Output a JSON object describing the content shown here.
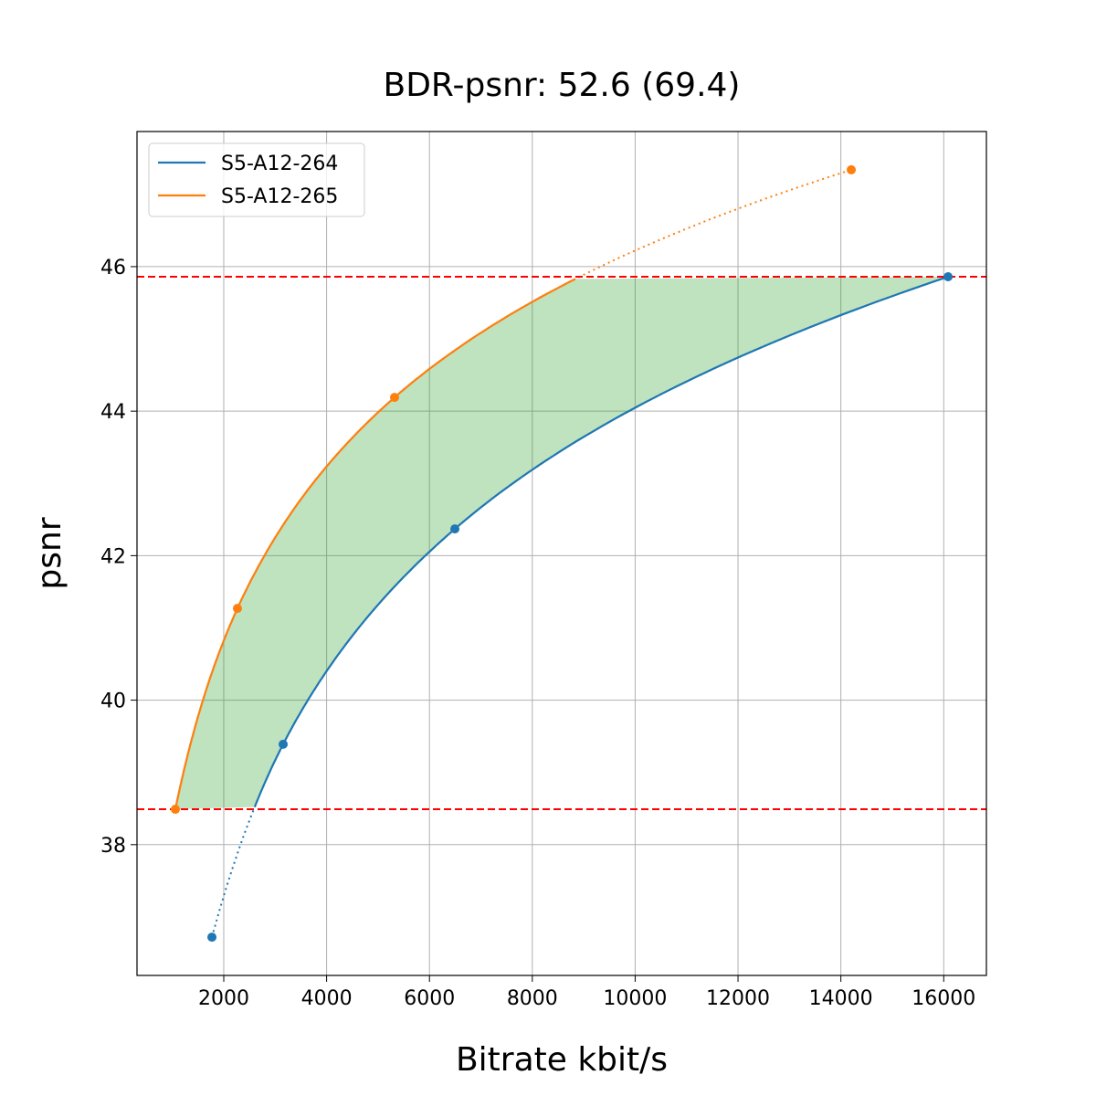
{
  "chart_data": {
    "type": "line",
    "title": "BDR-psnr: 52.6 (69.4)",
    "xlabel": "Bitrate kbit/s",
    "ylabel": "psnr",
    "xlim": [
      313,
      16830
    ],
    "ylim": [
      36.19,
      47.87
    ],
    "xticks": [
      2000,
      4000,
      6000,
      8000,
      10000,
      12000,
      14000,
      16000
    ],
    "xtick_labels": [
      "2000",
      "4000",
      "6000",
      "8000",
      "10000",
      "12000",
      "14000",
      "16000"
    ],
    "yticks": [
      38,
      40,
      42,
      44,
      46
    ],
    "ytick_labels": [
      "38",
      "40",
      "42",
      "44",
      "46"
    ],
    "grid": true,
    "legend_position": "top-left",
    "series": [
      {
        "name": "S5-A12-264",
        "color": "#1f77b4",
        "x": [
          1770,
          3155,
          6494,
          16085
        ],
        "y": [
          36.72,
          39.39,
          42.37,
          45.86
        ]
      },
      {
        "name": "S5-A12-265",
        "color": "#ff7f0e",
        "x": [
          1059,
          2266,
          5321,
          14202
        ],
        "y": [
          38.49,
          41.27,
          44.19,
          47.34
        ]
      }
    ],
    "reference_lines": {
      "orientation": "horizontal",
      "style": "dashed",
      "color": "#ff0000",
      "y": [
        38.49,
        45.86
      ]
    },
    "fill_between": {
      "color": "#2ca02c",
      "opacity": 0.3,
      "y_range": [
        38.49,
        45.86
      ]
    }
  }
}
